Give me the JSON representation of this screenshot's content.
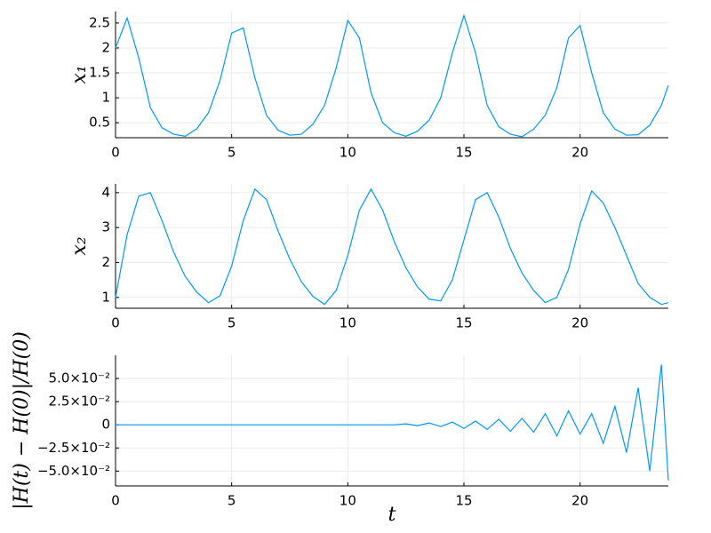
{
  "chart_data": [
    {
      "type": "line",
      "ylabel": "x₁",
      "x": [
        0,
        0.5,
        1,
        1.5,
        2,
        2.5,
        3,
        3.5,
        4,
        4.5,
        5,
        5.5,
        6,
        6.5,
        7,
        7.5,
        8,
        8.5,
        9,
        9.5,
        10,
        10.5,
        11,
        11.5,
        12,
        12.5,
        13,
        13.5,
        14,
        14.5,
        15,
        15.5,
        16,
        16.5,
        17,
        17.5,
        18,
        18.5,
        19,
        19.5,
        20,
        20.5,
        21,
        21.5,
        22,
        22.5,
        23,
        23.5,
        23.8
      ],
      "series": [
        {
          "color": "#009af9",
          "values": [
            2.0,
            2.6,
            1.8,
            0.8,
            0.4,
            0.27,
            0.23,
            0.38,
            0.7,
            1.35,
            2.3,
            2.4,
            1.4,
            0.65,
            0.35,
            0.25,
            0.27,
            0.47,
            0.85,
            1.6,
            2.55,
            2.2,
            1.1,
            0.5,
            0.3,
            0.23,
            0.33,
            0.55,
            1.0,
            1.9,
            2.65,
            1.9,
            0.85,
            0.42,
            0.27,
            0.22,
            0.37,
            0.65,
            1.2,
            2.2,
            2.45,
            1.5,
            0.7,
            0.37,
            0.25,
            0.26,
            0.45,
            0.85,
            1.25
          ]
        }
      ],
      "xlim": [
        0,
        23.8
      ],
      "xticks": [
        0,
        5,
        10,
        15,
        20
      ],
      "ylim": [
        0.2,
        2.73
      ],
      "yticks": [
        0.5,
        1.0,
        1.5,
        2.0,
        2.5
      ],
      "grid": true
    },
    {
      "type": "line",
      "ylabel": "x₂",
      "x": [
        0,
        0.5,
        1,
        1.5,
        2,
        2.5,
        3,
        3.5,
        4,
        4.5,
        5,
        5.5,
        6,
        6.5,
        7,
        7.5,
        8,
        8.5,
        9,
        9.5,
        10,
        10.5,
        11,
        11.5,
        12,
        12.5,
        13,
        13.5,
        14,
        14.5,
        15,
        15.5,
        16,
        16.5,
        17,
        17.5,
        18,
        18.5,
        19,
        19.5,
        20,
        20.5,
        21,
        21.5,
        22,
        22.5,
        23,
        23.5,
        23.8
      ],
      "series": [
        {
          "color": "#009af9",
          "values": [
            1.0,
            2.8,
            3.9,
            4.0,
            3.2,
            2.3,
            1.6,
            1.15,
            0.85,
            1.05,
            1.9,
            3.2,
            4.1,
            3.8,
            2.9,
            2.1,
            1.45,
            1.03,
            0.8,
            1.2,
            2.2,
            3.5,
            4.1,
            3.5,
            2.6,
            1.85,
            1.3,
            0.95,
            0.9,
            1.5,
            2.65,
            3.8,
            4.0,
            3.3,
            2.4,
            1.7,
            1.2,
            0.85,
            1.0,
            1.8,
            3.1,
            4.05,
            3.7,
            3.0,
            2.2,
            1.4,
            1.0,
            0.8,
            0.85
          ]
        }
      ],
      "xlim": [
        0,
        23.8
      ],
      "xticks": [
        0,
        5,
        10,
        15,
        20
      ],
      "ylim": [
        0.69,
        4.25
      ],
      "yticks": [
        1,
        2,
        3,
        4
      ],
      "grid": true
    },
    {
      "type": "line",
      "ylabel": "|H(t) − H(0)|/H(0)",
      "xlabel": "t",
      "x": [
        0,
        0.5,
        1,
        1.5,
        2,
        2.5,
        3,
        3.5,
        4,
        4.5,
        5,
        5.5,
        6,
        6.5,
        7,
        7.5,
        8,
        8.5,
        9,
        9.5,
        10,
        10.5,
        11,
        11.5,
        12,
        12.5,
        13,
        13.5,
        14,
        14.5,
        15,
        15.5,
        16,
        16.5,
        17,
        17.5,
        18,
        18.5,
        19,
        19.5,
        20,
        20.5,
        21,
        21.5,
        22,
        22.5,
        23,
        23.5,
        23.8
      ],
      "series": [
        {
          "color": "#009af9",
          "values": [
            0,
            0,
            0,
            0,
            0,
            0,
            0,
            0,
            0,
            0,
            0,
            0,
            0,
            0,
            0,
            0,
            0,
            0,
            0,
            0,
            0,
            0,
            0,
            0,
            0,
            0.001,
            -0.001,
            0.002,
            -0.002,
            0.003,
            -0.004,
            0.004,
            -0.005,
            0.006,
            -0.007,
            0.007,
            -0.008,
            0.012,
            -0.012,
            0.015,
            -0.01,
            0.012,
            -0.02,
            0.02,
            -0.03,
            0.04,
            -0.05,
            0.065,
            -0.06
          ]
        }
      ],
      "xlim": [
        0,
        23.8
      ],
      "xticks": [
        0,
        5,
        10,
        15,
        20
      ],
      "ylim": [
        -0.066,
        0.075
      ],
      "yticks": [
        {
          "value": -0.05,
          "label": "−5.0×10⁻²"
        },
        {
          "value": -0.025,
          "label": "−2.5×10⁻²"
        },
        0,
        {
          "value": 0.025,
          "label": "2.5×10⁻²"
        },
        {
          "value": 0.05,
          "label": "5.0×10⁻²"
        }
      ],
      "grid": true
    }
  ]
}
